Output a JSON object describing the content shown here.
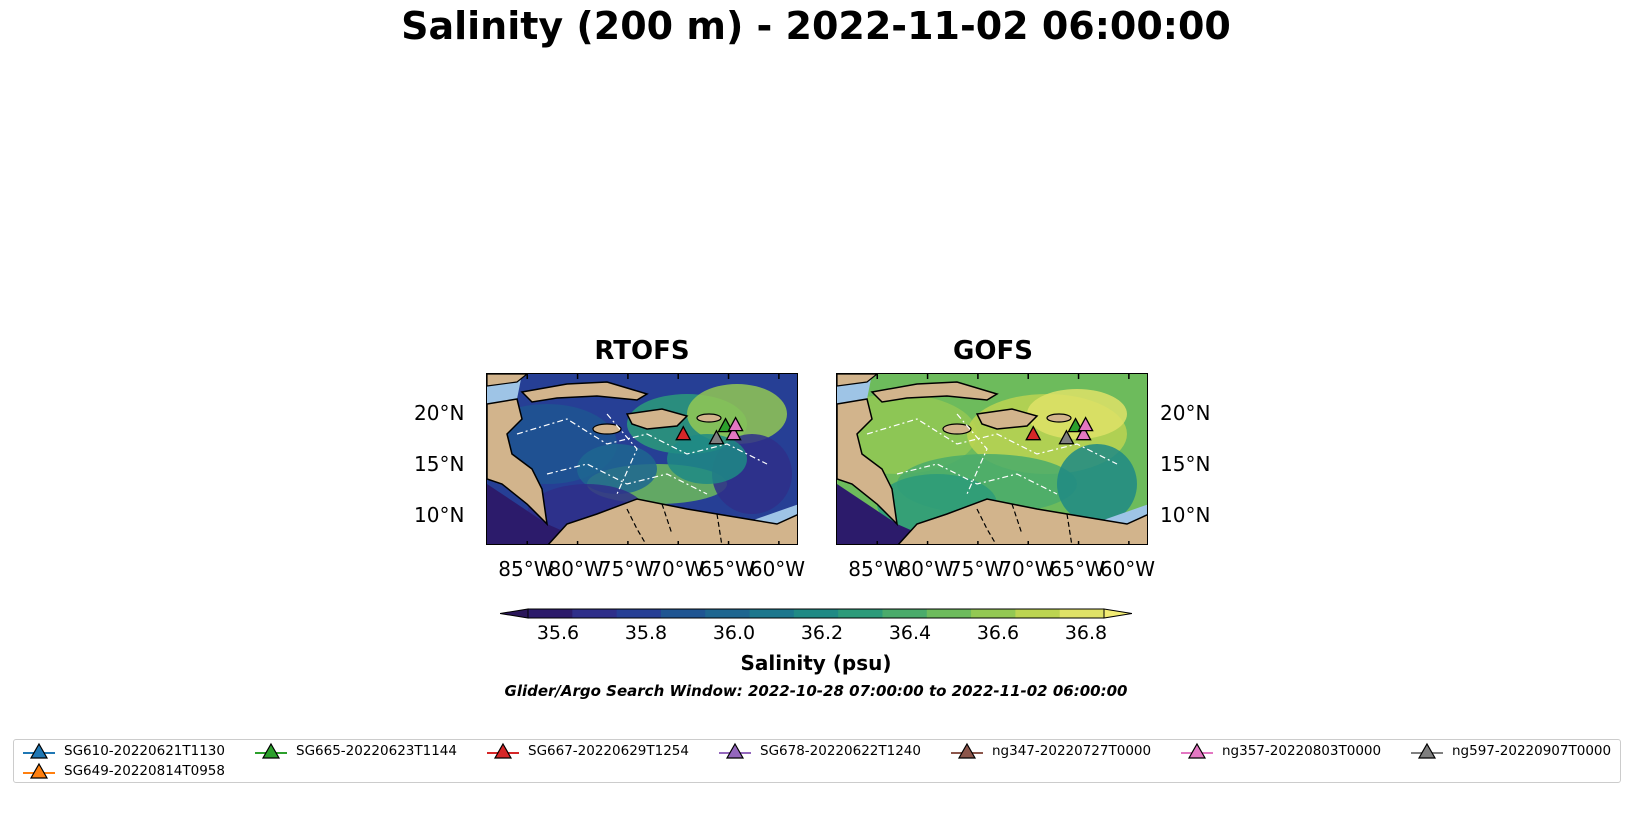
{
  "title": "Salinity (200 m) - 2022-11-02 06:00:00",
  "panels": [
    {
      "title": "RTOFS",
      "style": "rtofs"
    },
    {
      "title": "GOFS",
      "style": "gofs"
    }
  ],
  "lon_ticks": [
    "85°W",
    "80°W",
    "75°W",
    "70°W",
    "65°W",
    "60°W"
  ],
  "lat_ticks": [
    "20°N",
    "15°N",
    "10°N"
  ],
  "colorbar": {
    "label": "Salinity (psu)",
    "ticks": [
      "35.6",
      "35.8",
      "36.0",
      "36.2",
      "36.4",
      "36.6",
      "36.8"
    ],
    "colors": [
      "#2c1b6b",
      "#2f2f8a",
      "#263f95",
      "#1f5592",
      "#1e6690",
      "#1c778d",
      "#1f8a85",
      "#2c9b7a",
      "#4aab6b",
      "#6dbb5c",
      "#93c853",
      "#bcd451",
      "#dfe267"
    ],
    "extend_min_color": "#2a1659",
    "extend_max_color": "#f2ec74"
  },
  "search_window": "Glider/Argo Search Window: 2022-10-28 07:00:00 to 2022-11-02 06:00:00",
  "legend": [
    {
      "label": "SG610-20220621T1130",
      "color": "#1f77b4"
    },
    {
      "label": "SG665-20220623T1144",
      "color": "#2ca02c"
    },
    {
      "label": "SG667-20220629T1254",
      "color": "#d62728"
    },
    {
      "label": "SG678-20220622T1240",
      "color": "#9467bd"
    },
    {
      "label": "ng347-20220727T0000",
      "color": "#8c564b"
    },
    {
      "label": "ng357-20220803T0000",
      "color": "#e377c2"
    },
    {
      "label": "ng597-20220907T0000",
      "color": "#7f7f7f"
    },
    {
      "label": "SG649-20220814T0958",
      "color": "#ff7f0e"
    }
  ],
  "map_colors": {
    "land": "#d2b48c",
    "shelf": "#9ec4e6"
  }
}
